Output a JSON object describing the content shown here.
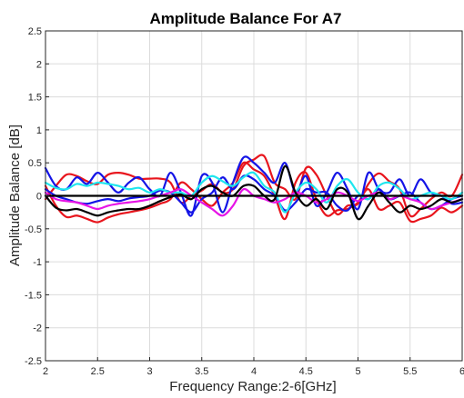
{
  "chart_data": {
    "type": "line",
    "title": "Amplitude Balance For A7",
    "xlabel": "Frequency Range:2-6[GHz]",
    "ylabel": "Amplitude Balance [dB]",
    "xlim": [
      2,
      6
    ],
    "ylim": [
      -2.5,
      2.5
    ],
    "xticks": [
      "2",
      "2.5",
      "3",
      "3.5",
      "4",
      "4.5",
      "5",
      "5.5",
      "6"
    ],
    "yticks": [
      "2.5",
      "2",
      "1.5",
      "1",
      "0.5",
      "0",
      "-0.5",
      "-1",
      "-1.5",
      "-2",
      "-2.5"
    ],
    "grid": true,
    "colors": {
      "red": "#e8141c",
      "blue": "#1414e6",
      "cyan": "#1ee6ee",
      "magenta": "#e614e6",
      "black": "#000000"
    },
    "series": [
      {
        "color": "#e8141c",
        "x": [
          2,
          2.1,
          2.2,
          2.3,
          2.4,
          2.5,
          2.6,
          2.7,
          2.8,
          2.9,
          3,
          3.1,
          3.2,
          3.3,
          3.4,
          3.5,
          3.6,
          3.7,
          3.8,
          3.9,
          4,
          4.1,
          4.2,
          4.3,
          4.4,
          4.5,
          4.6,
          4.7,
          4.8,
          4.9,
          5,
          5.1,
          5.2,
          5.3,
          5.4,
          5.5,
          5.6,
          5.7,
          5.8,
          5.9,
          6
        ],
        "values": [
          -0.05,
          0.15,
          0.32,
          0.3,
          0.22,
          0.18,
          0.32,
          0.35,
          0.32,
          0.26,
          0.26,
          0.26,
          0.2,
          -0.1,
          0.0,
          0.08,
          0.18,
          0.05,
          0.1,
          0.45,
          0.55,
          0.6,
          0.2,
          0.1,
          -0.05,
          0.42,
          0.32,
          0.0,
          -0.28,
          -0.15,
          -0.12,
          0.18,
          0.34,
          0.22,
          0.1,
          -0.3,
          -0.2,
          -0.05,
          0.05,
          0.0,
          0.32
        ]
      },
      {
        "color": "#e8141c",
        "x": [
          2,
          2.1,
          2.2,
          2.3,
          2.4,
          2.5,
          2.6,
          2.7,
          2.8,
          2.9,
          3,
          3.1,
          3.2,
          3.3,
          3.4,
          3.5,
          3.6,
          3.7,
          3.8,
          3.9,
          4,
          4.1,
          4.2,
          4.3,
          4.4,
          4.5,
          4.6,
          4.7,
          4.8,
          4.9,
          5,
          5.1,
          5.2,
          5.3,
          5.4,
          5.5,
          5.6,
          5.7,
          5.8,
          5.9,
          6
        ],
        "values": [
          0.15,
          -0.15,
          -0.32,
          -0.3,
          -0.35,
          -0.4,
          -0.33,
          -0.28,
          -0.25,
          -0.22,
          -0.18,
          -0.12,
          -0.05,
          0.2,
          0.1,
          -0.05,
          -0.15,
          0.05,
          0.2,
          0.5,
          0.4,
          0.3,
          0.0,
          -0.35,
          0.2,
          0.35,
          -0.05,
          -0.3,
          -0.22,
          -0.2,
          -0.1,
          0.1,
          -0.2,
          -0.15,
          -0.1,
          -0.38,
          -0.35,
          -0.3,
          -0.18,
          -0.25,
          -0.15
        ]
      },
      {
        "color": "#1414e6",
        "x": [
          2,
          2.1,
          2.2,
          2.3,
          2.4,
          2.5,
          2.6,
          2.7,
          2.8,
          2.9,
          3,
          3.1,
          3.2,
          3.3,
          3.4,
          3.5,
          3.6,
          3.7,
          3.8,
          3.9,
          4,
          4.1,
          4.2,
          4.3,
          4.4,
          4.5,
          4.6,
          4.7,
          4.8,
          4.9,
          5,
          5.1,
          5.2,
          5.3,
          5.4,
          5.5,
          5.6,
          5.7,
          5.8,
          5.9,
          6
        ],
        "values": [
          0.42,
          0.15,
          0.1,
          0.28,
          0.18,
          0.35,
          0.2,
          0.05,
          0.2,
          0.28,
          0.1,
          0.0,
          0.35,
          0.05,
          -0.3,
          0.3,
          0.2,
          -0.25,
          0.2,
          0.58,
          0.5,
          0.35,
          0.2,
          0.5,
          0.05,
          0.3,
          -0.15,
          0.05,
          0.35,
          0.1,
          -0.2,
          0.35,
          0.1,
          0.05,
          0.25,
          0.0,
          0.25,
          0.05,
          0.0,
          -0.12,
          -0.1
        ]
      },
      {
        "color": "#1414e6",
        "x": [
          2,
          2.1,
          2.2,
          2.3,
          2.4,
          2.5,
          2.6,
          2.7,
          2.8,
          2.9,
          3,
          3.1,
          3.2,
          3.3,
          3.4,
          3.5,
          3.6,
          3.7,
          3.8,
          3.9,
          4,
          4.1,
          4.2,
          4.3,
          4.4,
          4.5,
          4.6,
          4.7,
          4.8,
          4.9,
          5,
          5.1,
          5.2,
          5.3,
          5.4,
          5.5,
          5.6,
          5.7,
          5.8,
          5.9,
          6
        ],
        "values": [
          0.1,
          0.0,
          -0.05,
          -0.1,
          -0.12,
          -0.08,
          -0.05,
          -0.08,
          -0.04,
          -0.02,
          0.0,
          0.08,
          0.05,
          -0.1,
          -0.25,
          -0.05,
          0.05,
          0.28,
          0.1,
          0.3,
          0.25,
          0.1,
          0.0,
          -0.22,
          -0.1,
          0.1,
          0.05,
          0.05,
          -0.15,
          -0.22,
          0.0,
          -0.05,
          0.1,
          -0.05,
          0.0,
          0.05,
          -0.1,
          -0.2,
          -0.15,
          -0.05,
          0.0
        ]
      },
      {
        "color": "#1ee6ee",
        "x": [
          2,
          2.1,
          2.2,
          2.3,
          2.4,
          2.5,
          2.6,
          2.7,
          2.8,
          2.9,
          3,
          3.1,
          3.2,
          3.3,
          3.4,
          3.5,
          3.6,
          3.7,
          3.8,
          3.9,
          4,
          4.1,
          4.2,
          4.3,
          4.4,
          4.5,
          4.6,
          4.7,
          4.8,
          4.9,
          5,
          5.1,
          5.2,
          5.3,
          5.4,
          5.5,
          5.6,
          5.7,
          5.8,
          5.9,
          6
        ],
        "values": [
          0.2,
          0.12,
          0.1,
          0.18,
          0.15,
          0.2,
          0.18,
          0.15,
          0.1,
          0.12,
          0.05,
          0.1,
          0.05,
          0.05,
          0.0,
          0.2,
          0.3,
          0.22,
          0.15,
          0.28,
          0.35,
          0.15,
          0.05,
          -0.25,
          0.05,
          0.2,
          0.1,
          -0.1,
          0.15,
          0.25,
          0.05,
          -0.05,
          0.15,
          0.2,
          0.1,
          -0.05,
          0.0,
          0.05,
          0.0,
          -0.05,
          0.05
        ]
      },
      {
        "color": "#e614e6",
        "x": [
          2,
          2.1,
          2.2,
          2.3,
          2.4,
          2.5,
          2.6,
          2.7,
          2.8,
          2.9,
          3,
          3.1,
          3.2,
          3.3,
          3.4,
          3.5,
          3.6,
          3.7,
          3.8,
          3.9,
          4,
          4.1,
          4.2,
          4.3,
          4.4,
          4.5,
          4.6,
          4.7,
          4.8,
          4.9,
          5,
          5.1,
          5.2,
          5.3,
          5.4,
          5.5,
          5.6,
          5.7,
          5.8,
          5.9,
          6
        ],
        "values": [
          0.05,
          -0.05,
          -0.08,
          -0.1,
          -0.15,
          -0.2,
          -0.15,
          -0.12,
          -0.1,
          -0.08,
          -0.05,
          0.0,
          0.05,
          0.1,
          0.0,
          -0.1,
          -0.2,
          -0.3,
          -0.15,
          0.1,
          0.0,
          -0.05,
          -0.1,
          -0.05,
          0.05,
          0.0,
          -0.1,
          -0.05,
          0.05,
          0.0,
          -0.08,
          0.0,
          0.05,
          -0.05,
          0.0,
          -0.05,
          -0.1,
          -0.2,
          -0.15,
          -0.1,
          -0.05
        ]
      },
      {
        "color": "#000000",
        "x": [
          2,
          2.1,
          2.2,
          2.3,
          2.4,
          2.5,
          2.6,
          2.7,
          2.8,
          2.9,
          3,
          3.1,
          3.2,
          3.3,
          3.4,
          3.5,
          3.6,
          3.7,
          3.8,
          3.9,
          4,
          4.1,
          4.2,
          4.3,
          4.4,
          4.5,
          4.6,
          4.7,
          4.8,
          4.9,
          5,
          5.1,
          5.2,
          5.3,
          5.4,
          5.5,
          5.6,
          5.7,
          5.8,
          5.9,
          6
        ],
        "values": [
          0.0,
          0.0,
          0.0,
          0.0,
          0.0,
          0.0,
          0.0,
          0.0,
          0.0,
          0.0,
          0.0,
          0.0,
          0.0,
          0.0,
          0.0,
          0.0,
          0.0,
          0.0,
          0.0,
          0.0,
          0.0,
          0.0,
          0.0,
          0.0,
          0.0,
          0.0,
          0.0,
          0.0,
          0.0,
          0.0,
          0.0,
          0.0,
          0.0,
          0.0,
          0.0,
          0.0,
          0.0,
          0.0,
          0.0,
          0.0,
          0.0
        ]
      },
      {
        "color": "#000000",
        "x": [
          2,
          2.1,
          2.2,
          2.3,
          2.4,
          2.5,
          2.6,
          2.7,
          2.8,
          2.9,
          3,
          3.1,
          3.2,
          3.3,
          3.4,
          3.5,
          3.6,
          3.7,
          3.8,
          3.9,
          4,
          4.1,
          4.2,
          4.3,
          4.4,
          4.5,
          4.6,
          4.7,
          4.8,
          4.9,
          5,
          5.1,
          5.2,
          5.3,
          5.4,
          5.5,
          5.6,
          5.7,
          5.8,
          5.9,
          6
        ],
        "values": [
          0.0,
          -0.18,
          -0.22,
          -0.2,
          -0.25,
          -0.3,
          -0.25,
          -0.22,
          -0.2,
          -0.2,
          -0.15,
          -0.08,
          -0.02,
          0.02,
          -0.05,
          0.1,
          0.15,
          0.05,
          0.0,
          0.15,
          0.15,
          0.0,
          -0.05,
          0.45,
          0.05,
          -0.15,
          -0.05,
          -0.2,
          0.1,
          0.05,
          -0.35,
          -0.15,
          0.05,
          -0.1,
          -0.25,
          -0.15,
          -0.2,
          -0.15,
          -0.05,
          -0.1,
          -0.05
        ]
      }
    ]
  }
}
